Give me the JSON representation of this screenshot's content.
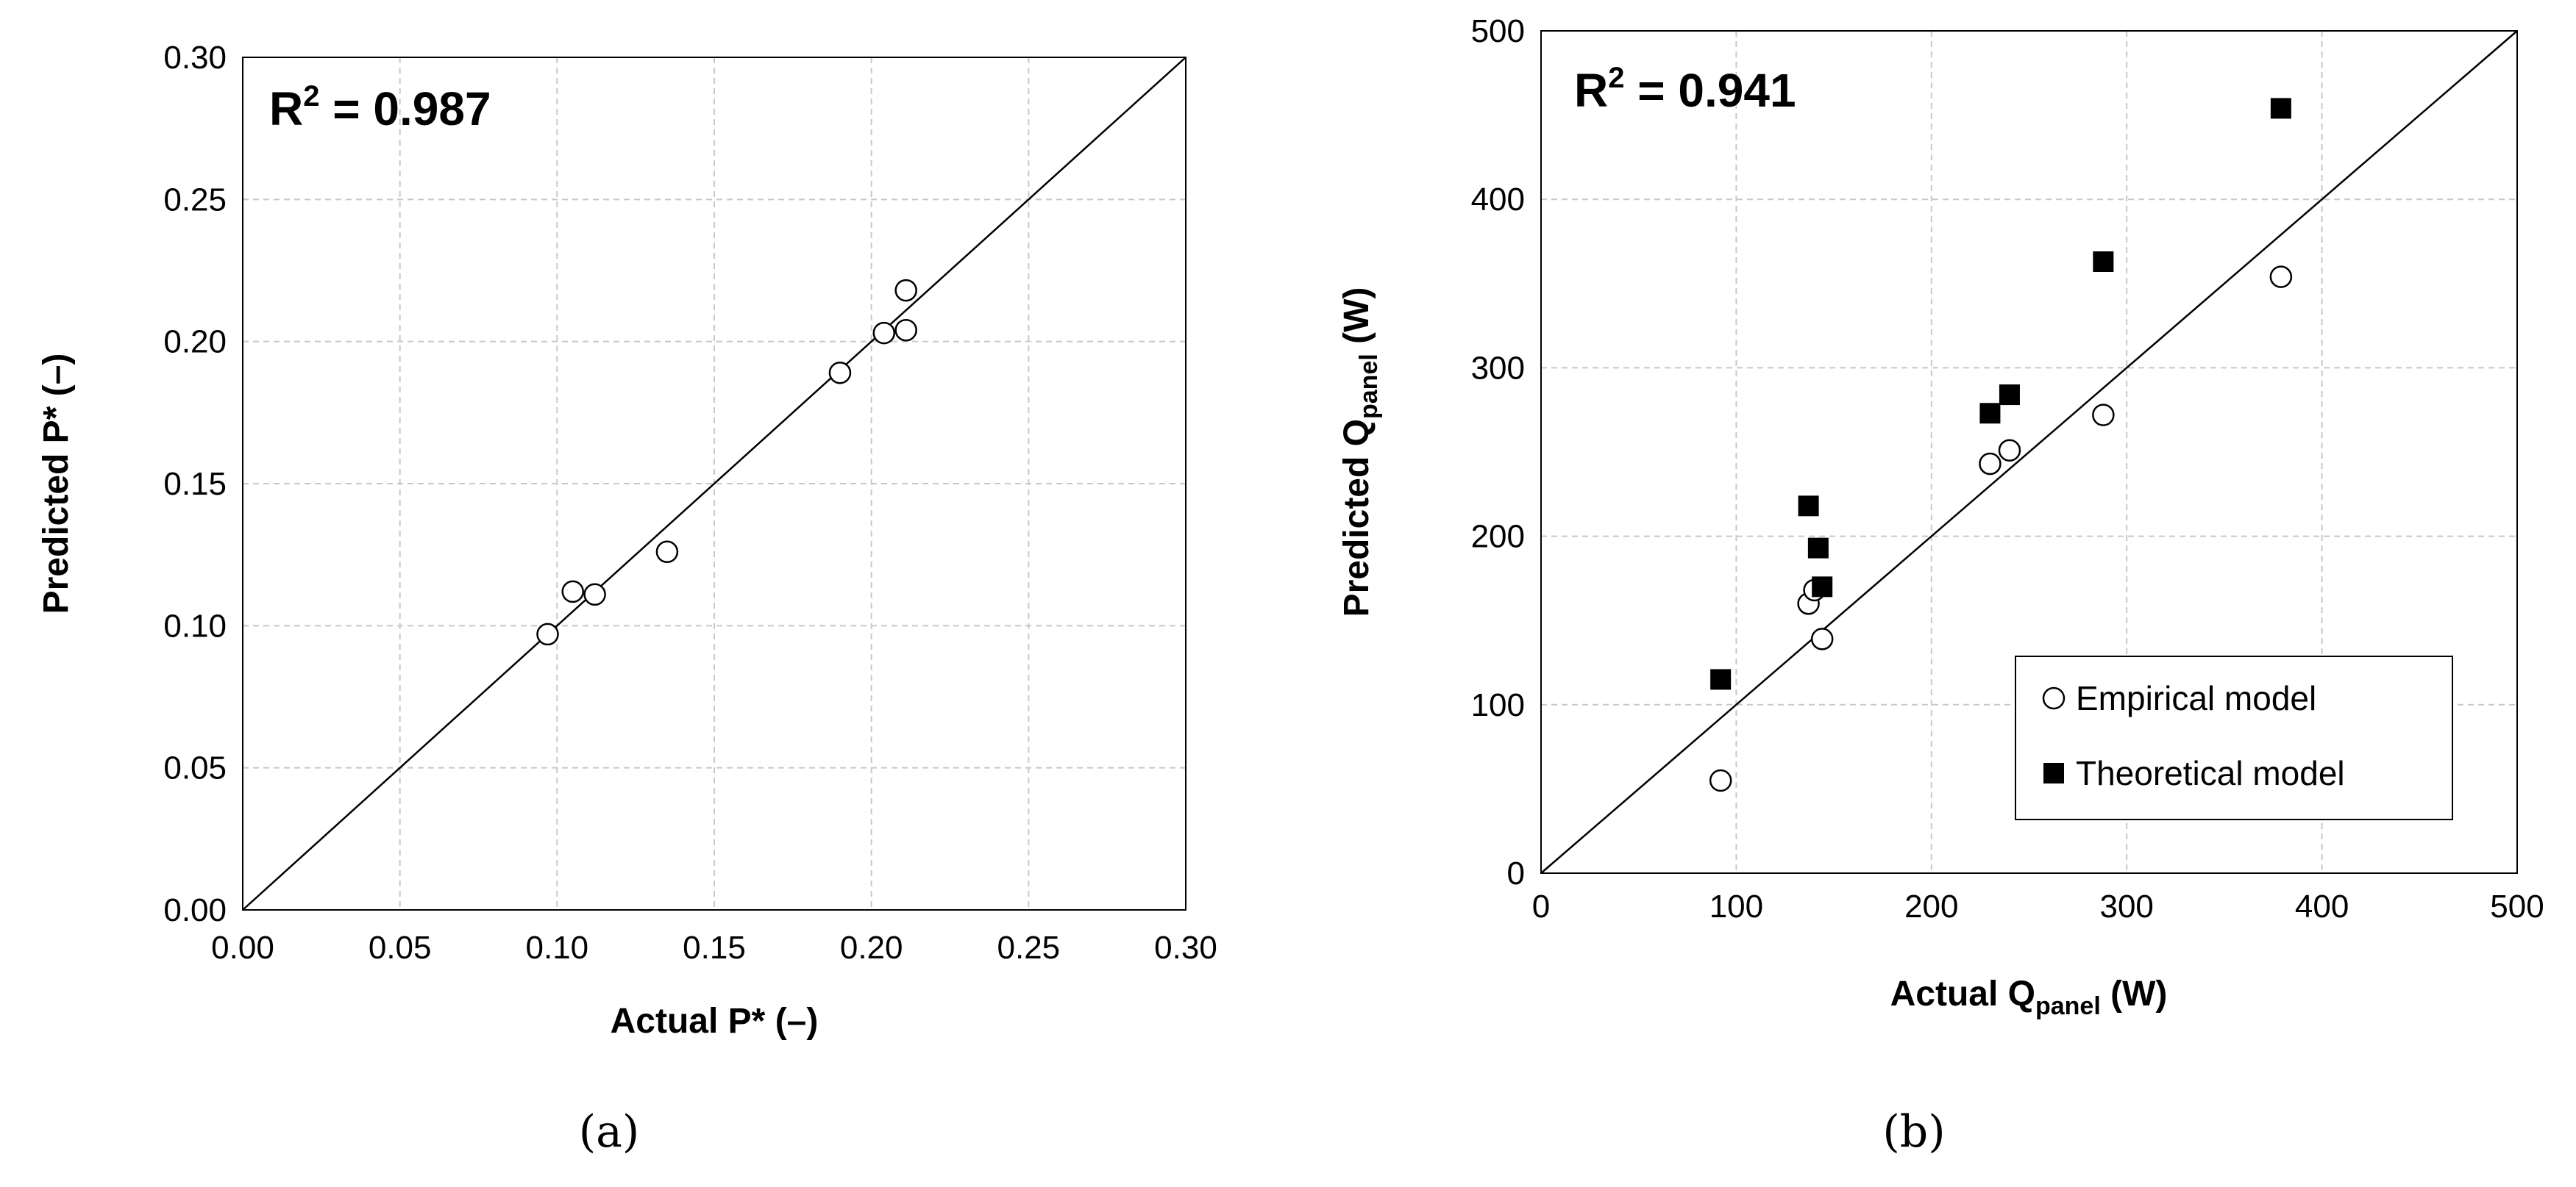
{
  "chart_data": [
    {
      "type": "scatter",
      "panel_label": "(a)",
      "annotation": {
        "prefix": "R",
        "sup": "2",
        "suffix": " = 0.987"
      },
      "xlabel": "Actual P* (–)",
      "ylabel": "Predicted P* (–)",
      "xlim": [
        0,
        0.3
      ],
      "ylim": [
        0,
        0.3
      ],
      "xticks": [
        "0.00",
        "0.05",
        "0.10",
        "0.15",
        "0.20",
        "0.25",
        "0.30"
      ],
      "yticks": [
        "0.00",
        "0.05",
        "0.10",
        "0.15",
        "0.20",
        "0.25",
        "0.30"
      ],
      "grid": true,
      "reference_line": "y = x",
      "series": [
        {
          "marker": "open-circle",
          "x": [
            0.097,
            0.105,
            0.112,
            0.135,
            0.19,
            0.204,
            0.211,
            0.211
          ],
          "y": [
            0.097,
            0.112,
            0.111,
            0.126,
            0.189,
            0.203,
            0.204,
            0.218
          ]
        }
      ]
    },
    {
      "type": "scatter",
      "panel_label": "(b)",
      "annotation": {
        "prefix": "R",
        "sup": "2",
        "suffix": " = 0.941"
      },
      "xlabel": {
        "prefix": "Actual Q",
        "sub": "panel",
        "suffix": " (W)"
      },
      "ylabel": {
        "prefix": "Predicted Q",
        "sub": "panel",
        "suffix": " (W)"
      },
      "xlim": [
        0,
        500
      ],
      "ylim": [
        0,
        500
      ],
      "xticks": [
        "0",
        "100",
        "200",
        "300",
        "400",
        "500"
      ],
      "yticks": [
        "0",
        "100",
        "200",
        "300",
        "400",
        "500"
      ],
      "grid": true,
      "reference_line": "y = x",
      "legend_position": "bottom-right",
      "series": [
        {
          "name": "Empirical model",
          "marker": "open-circle",
          "x": [
            92,
            137,
            140,
            144,
            230,
            240,
            288,
            379
          ],
          "y": [
            55,
            160,
            168,
            139,
            243,
            251,
            272,
            354
          ]
        },
        {
          "name": "Theoretical model",
          "marker": "filled-square",
          "x": [
            92,
            137,
            142,
            144,
            230,
            240,
            288,
            379
          ],
          "y": [
            115,
            218,
            193,
            170,
            273,
            284,
            363,
            454
          ]
        }
      ]
    }
  ]
}
